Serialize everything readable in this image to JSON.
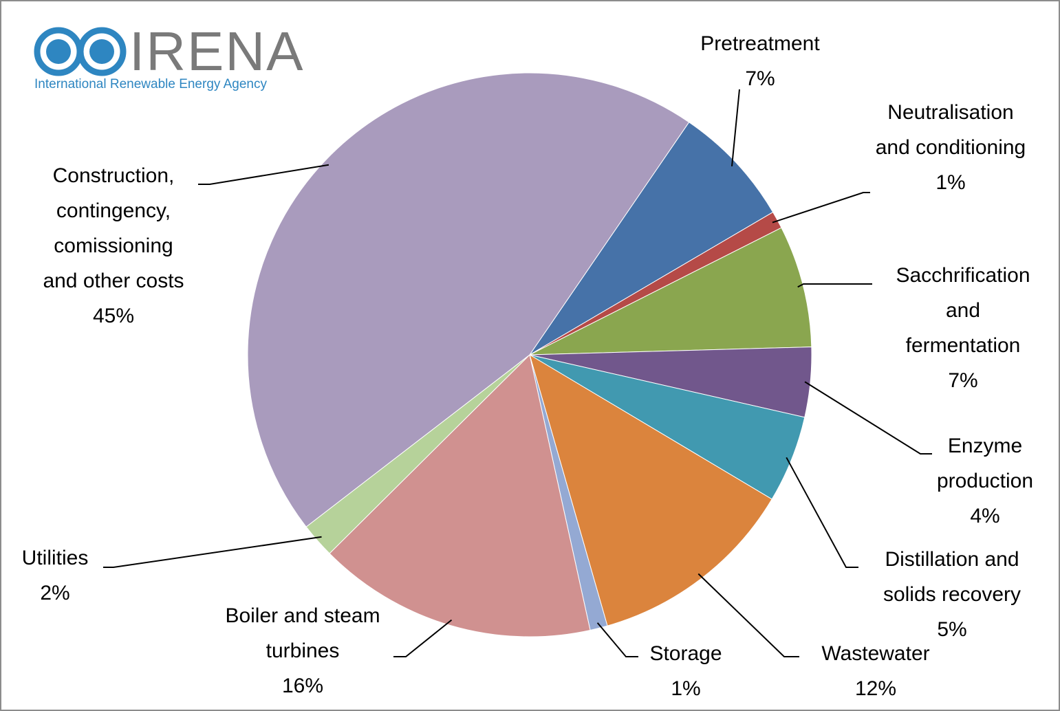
{
  "logo": {
    "name": "IRENA",
    "tagline": "International Renewable Energy Agency"
  },
  "chart_data": {
    "type": "pie",
    "categories": [
      "Pretreatment",
      "Neutralisation and conditioning",
      "Sacchrification and fermentation",
      "Enzyme production",
      "Distillation and solids recovery",
      "Wastewater",
      "Storage",
      "Boiler and steam turbines",
      "Utilities",
      "Construction, contingency, comissioning and other costs"
    ],
    "values": [
      7,
      1,
      7,
      4,
      5,
      12,
      1,
      16,
      2,
      45
    ],
    "value_labels": [
      "7%",
      "1%",
      "7%",
      "4%",
      "5%",
      "12%",
      "1%",
      "16%",
      "2%",
      "45%"
    ],
    "colors": [
      "#4672a8",
      "#b54a47",
      "#8aa64f",
      "#71578c",
      "#4199b0",
      "#db843d",
      "#94a9d3",
      "#d09190",
      "#b6d29a",
      "#a99bbd"
    ]
  }
}
